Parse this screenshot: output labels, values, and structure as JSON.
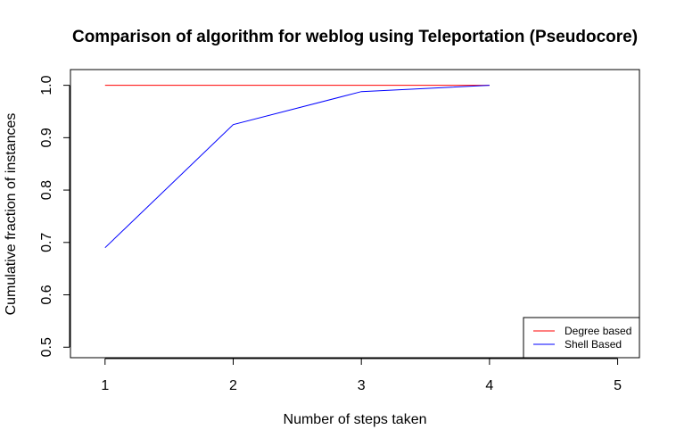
{
  "chart_data": {
    "type": "line",
    "title": "Comparison of algorithm for weblog using Teleportation (Pseudocore)",
    "xlabel": "Number of steps taken",
    "ylabel": "Cumulative fraction of instances",
    "x_ticks": [
      "1",
      "2",
      "3",
      "4",
      "5"
    ],
    "y_ticks": [
      "0.5",
      "0.6",
      "0.7",
      "0.8",
      "0.9",
      "1.0"
    ],
    "xlim": [
      0.73,
      5.17
    ],
    "ylim": [
      0.48,
      1.03
    ],
    "grid": false,
    "legend_position": "bottom-right",
    "series": [
      {
        "name": "Degree based",
        "color": "#ff0000",
        "x": [
          1,
          2,
          3,
          4
        ],
        "y": [
          1.0,
          1.0,
          1.0,
          1.0
        ]
      },
      {
        "name": "Shell Based",
        "color": "#0000ff",
        "x": [
          1,
          2,
          3,
          4
        ],
        "y": [
          0.69,
          0.925,
          0.988,
          1.0
        ]
      }
    ]
  }
}
